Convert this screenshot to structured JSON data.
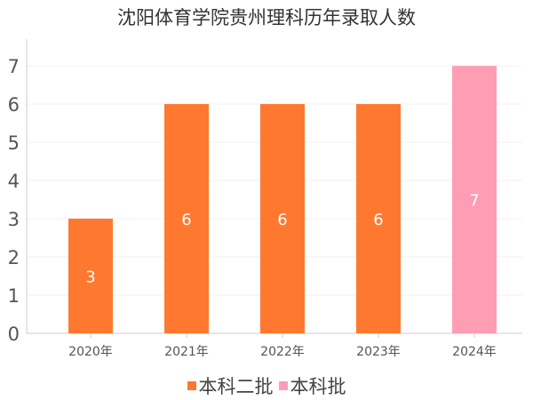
{
  "chart_data": {
    "type": "bar",
    "title": "沈阳体育学院贵州理科历年录取人数",
    "categories": [
      "2020年",
      "2021年",
      "2022年",
      "2023年",
      "2024年"
    ],
    "series": [
      {
        "name": "本科二批",
        "color": "#FF7830",
        "values": [
          3,
          6,
          6,
          6,
          null
        ]
      },
      {
        "name": "本科批",
        "color": "#FF9DB5",
        "values": [
          null,
          null,
          null,
          null,
          7
        ]
      }
    ],
    "ylim": [
      0,
      7.7
    ],
    "yticks": [
      0,
      1,
      2,
      3,
      4,
      5,
      6,
      7
    ],
    "grid": true,
    "legend_position": "bottom"
  }
}
